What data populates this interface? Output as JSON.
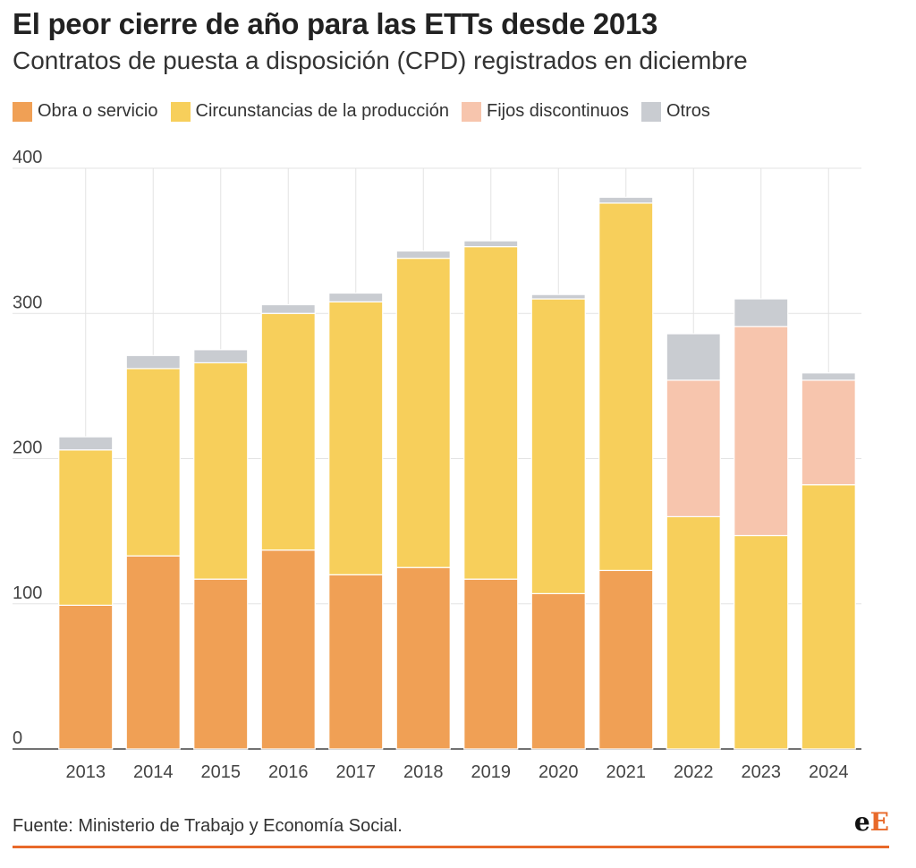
{
  "title": "El peor cierre de año para las ETTs desde 2013",
  "subtitle": "Contratos de puesta a disposición (CPD) registrados en diciembre",
  "footer": {
    "source": "Fuente: Ministerio de Trabajo y Economía Social.",
    "logo_small": "e",
    "logo_big": "E"
  },
  "colors": {
    "obra": "#f0a055",
    "circunstancias": "#f7cf5b",
    "fijos": "#f7c5ad",
    "otros": "#c9ccd1",
    "accent": "#e8692a"
  },
  "chart_data": {
    "type": "bar",
    "stacked": true,
    "categories": [
      "2013",
      "2014",
      "2015",
      "2016",
      "2017",
      "2018",
      "2019",
      "2020",
      "2021",
      "2022",
      "2023",
      "2024"
    ],
    "series": [
      {
        "name": "Obra o servicio",
        "color_key": "obra",
        "values": [
          99,
          133,
          117,
          137,
          120,
          125,
          117,
          107,
          123,
          0,
          0,
          0
        ]
      },
      {
        "name": "Circunstancias de la producción",
        "color_key": "circunstancias",
        "values": [
          107,
          129,
          149,
          163,
          188,
          213,
          229,
          203,
          253,
          160,
          147,
          182
        ]
      },
      {
        "name": "Fijos discontinuos",
        "color_key": "fijos",
        "values": [
          0,
          0,
          0,
          0,
          0,
          0,
          0,
          0,
          0,
          94,
          144,
          72
        ]
      },
      {
        "name": "Otros",
        "color_key": "otros",
        "values": [
          9,
          9,
          9,
          6,
          6,
          5,
          4,
          3,
          4,
          32,
          19,
          5
        ]
      }
    ],
    "y_ticks": [
      0,
      100,
      200,
      300,
      400
    ],
    "ylim": [
      0,
      400
    ],
    "grid": true,
    "legend_position": "top-left"
  }
}
